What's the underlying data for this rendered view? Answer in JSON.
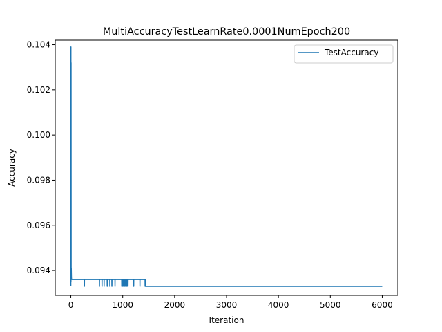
{
  "chart_data": {
    "type": "line",
    "title": "MultiAccuracyTestLearnRate0.0001NumEpoch200",
    "xlabel": "Iteration",
    "ylabel": "Accuracy",
    "xlim": [
      -300,
      6300
    ],
    "ylim": [
      0.0929,
      0.1042
    ],
    "xticks": [
      0,
      1000,
      2000,
      3000,
      4000,
      5000,
      6000
    ],
    "yticks": [
      0.094,
      0.096,
      0.098,
      0.1,
      0.102,
      0.104
    ],
    "ytick_labels": [
      "0.094",
      "0.096",
      "0.098",
      "0.100",
      "0.102",
      "0.104"
    ],
    "legend_position": "upper-right",
    "grid": false,
    "series": [
      {
        "name": "TestAccuracy",
        "color": "#1f77b4",
        "x": [
          0,
          2,
          3,
          5,
          7,
          9,
          12,
          15,
          20,
          260,
          261,
          262,
          263,
          550,
          551,
          552,
          553,
          600,
          601,
          602,
          603,
          640,
          641,
          642,
          643,
          700,
          701,
          702,
          703,
          750,
          751,
          752,
          753,
          790,
          791,
          792,
          793,
          850,
          851,
          852,
          853,
          980,
          981,
          982,
          983,
          1000,
          1001,
          1002,
          1003,
          1020,
          1021,
          1022,
          1023,
          1040,
          1041,
          1042,
          1043,
          1060,
          1061,
          1062,
          1063,
          1080,
          1081,
          1082,
          1083,
          1100,
          1101,
          1102,
          1103,
          1210,
          1211,
          1212,
          1213,
          1330,
          1331,
          1332,
          1333,
          1430,
          1431,
          1432,
          1433,
          1440,
          6000
        ],
        "y": [
          0.0933,
          0.1039,
          0.0935,
          0.1032,
          0.0937,
          0.0941,
          0.0937,
          0.0936,
          0.0936,
          0.0936,
          0.0933,
          0.0933,
          0.0936,
          0.0936,
          0.0933,
          0.0933,
          0.0936,
          0.0936,
          0.0933,
          0.0933,
          0.0936,
          0.0936,
          0.0933,
          0.0933,
          0.0936,
          0.0936,
          0.0933,
          0.0933,
          0.0936,
          0.0936,
          0.0933,
          0.0933,
          0.0936,
          0.0936,
          0.0933,
          0.0933,
          0.0936,
          0.0936,
          0.0933,
          0.0933,
          0.0936,
          0.0936,
          0.0933,
          0.0933,
          0.0936,
          0.0936,
          0.0933,
          0.0933,
          0.0936,
          0.0936,
          0.0933,
          0.0933,
          0.0936,
          0.0936,
          0.0933,
          0.0933,
          0.0936,
          0.0936,
          0.0933,
          0.0933,
          0.0936,
          0.0936,
          0.0933,
          0.0933,
          0.0936,
          0.0936,
          0.0933,
          0.0933,
          0.0936,
          0.0936,
          0.0933,
          0.0933,
          0.0936,
          0.0936,
          0.0933,
          0.0933,
          0.0936,
          0.0936,
          0.0933,
          0.0933,
          0.0936,
          0.0933,
          0.0933
        ]
      }
    ]
  }
}
